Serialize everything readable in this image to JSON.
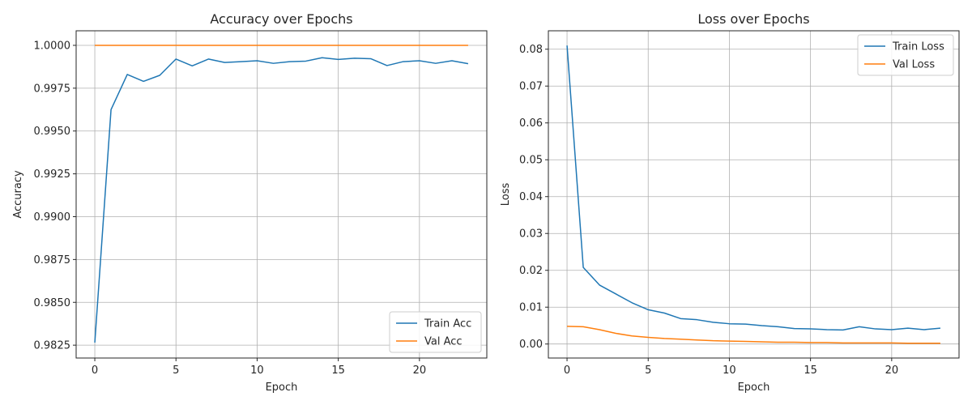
{
  "chart_data": [
    {
      "type": "line",
      "title": "Accuracy over Epochs",
      "xlabel": "Epoch",
      "ylabel": "Accuracy",
      "xlim": [
        -1.15,
        24.15
      ],
      "ylim": [
        0.98175,
        1.00085
      ],
      "xticks": [
        0,
        5,
        10,
        15,
        20
      ],
      "xtick_labels": [
        "0",
        "5",
        "10",
        "15",
        "20"
      ],
      "yticks": [
        0.9825,
        0.985,
        0.9875,
        0.99,
        0.9925,
        0.995,
        0.9975,
        1.0
      ],
      "ytick_labels": [
        "0.9825",
        "0.9850",
        "0.9875",
        "0.9900",
        "0.9925",
        "0.9950",
        "0.9975",
        "1.0000"
      ],
      "grid": true,
      "legend_position": "lower-right",
      "x": [
        0,
        1,
        2,
        3,
        4,
        5,
        6,
        7,
        8,
        9,
        10,
        11,
        12,
        13,
        14,
        15,
        16,
        17,
        18,
        19,
        20,
        21,
        22,
        23
      ],
      "series": [
        {
          "name": "Train Acc",
          "color": "#1f77b4",
          "values": [
            0.98265,
            0.99625,
            0.9983,
            0.9979,
            0.99825,
            0.9992,
            0.9988,
            0.9992,
            0.999,
            0.99905,
            0.9991,
            0.99895,
            0.99905,
            0.99908,
            0.99928,
            0.99918,
            0.99925,
            0.99922,
            0.99882,
            0.99905,
            0.9991,
            0.99895,
            0.9991,
            0.99893
          ]
        },
        {
          "name": "Val Acc",
          "color": "#ff7f0e",
          "values": [
            1,
            1,
            1,
            1,
            1,
            1,
            1,
            1,
            1,
            1,
            1,
            1,
            1,
            1,
            1,
            1,
            1,
            1,
            1,
            1,
            1,
            1,
            1,
            1
          ]
        }
      ]
    },
    {
      "type": "line",
      "title": "Loss over Epochs",
      "xlabel": "Epoch",
      "ylabel": "Loss",
      "xlim": [
        -1.15,
        24.15
      ],
      "ylim": [
        -0.0038,
        0.085
      ],
      "xticks": [
        0,
        5,
        10,
        15,
        20
      ],
      "xtick_labels": [
        "0",
        "5",
        "10",
        "15",
        "20"
      ],
      "yticks": [
        0,
        0.01,
        0.02,
        0.03,
        0.04,
        0.05,
        0.06,
        0.07,
        0.08
      ],
      "ytick_labels": [
        "0.00",
        "0.01",
        "0.02",
        "0.03",
        "0.04",
        "0.05",
        "0.06",
        "0.07",
        "0.08"
      ],
      "grid": true,
      "legend_position": "upper-right",
      "x": [
        0,
        1,
        2,
        3,
        4,
        5,
        6,
        7,
        8,
        9,
        10,
        11,
        12,
        13,
        14,
        15,
        16,
        17,
        18,
        19,
        20,
        21,
        22,
        23
      ],
      "series": [
        {
          "name": "Train Loss",
          "color": "#1f77b4",
          "values": [
            0.081,
            0.0208,
            0.016,
            0.0136,
            0.0112,
            0.0093,
            0.0084,
            0.0069,
            0.0066,
            0.0059,
            0.0055,
            0.0054,
            0.005,
            0.0047,
            0.0042,
            0.0041,
            0.0039,
            0.0038,
            0.0047,
            0.0041,
            0.0039,
            0.0043,
            0.0039,
            0.0043
          ]
        },
        {
          "name": "Val Loss",
          "color": "#ff7f0e",
          "values": [
            0.0048,
            0.0047,
            0.0039,
            0.0029,
            0.0022,
            0.0018,
            0.0015,
            0.0013,
            0.0011,
            0.0009,
            0.0008,
            0.0007,
            0.0006,
            0.0005,
            0.0005,
            0.0004,
            0.0004,
            0.0003,
            0.0003,
            0.0003,
            0.0003,
            0.0002,
            0.0002,
            0.0002
          ]
        }
      ]
    }
  ]
}
